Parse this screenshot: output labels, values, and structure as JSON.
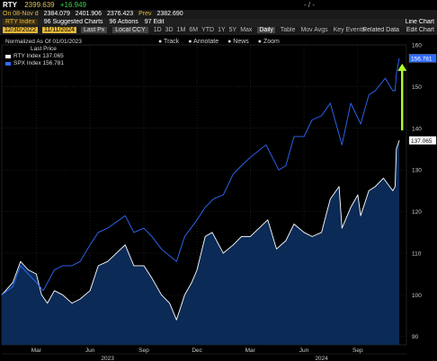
{
  "quote": {
    "symbol": "RTY",
    "last": "2399.639",
    "change": "+16.949",
    "flash": "- / -",
    "line2_prefix": "On 08-Nov d",
    "open": "2384.079",
    "high": "2401.906",
    "low": "2376.423",
    "prev_label": "Prev",
    "prev": "2382.690"
  },
  "toolbar": {
    "security": "RTY Index",
    "suggested": "96 Suggested Charts",
    "actions": "96 Actions",
    "edit": "97 Edit",
    "chart_type": "Line Chart"
  },
  "range_bar": {
    "start": "12/30/2022",
    "end": "11/11/2024",
    "last_price": "Last Px",
    "local_ccy": "Local CCY",
    "periods": [
      "1D",
      "3D",
      "1M",
      "6M",
      "YTD",
      "1Y",
      "5Y",
      "Max"
    ],
    "frequency": "Daily",
    "table": "Table",
    "mov_avgs": "Mov Avgs",
    "key_events": "Key Events",
    "related_data": "Related Data",
    "edit_chart": "Edit Chart"
  },
  "chart_tools": [
    "Track",
    "Annotate",
    "News",
    "Zoom"
  ],
  "accent_colors": {
    "rty": "#ffffff",
    "spx": "#2f6bff",
    "arrow": "#b0ff2a",
    "header": "#e4b73a"
  },
  "chart_data": {
    "type": "line",
    "title": "Normalized As Of 01/01/2023",
    "legend_header": "Last Price",
    "legend_position": "top-left",
    "grid": true,
    "ylim": [
      88,
      160
    ],
    "y_ticks": [
      90,
      100,
      110,
      120,
      130,
      140,
      150,
      160
    ],
    "x_range": [
      "2023-01-01",
      "2024-11-11"
    ],
    "x_tick_months": [
      {
        "label": "Mar",
        "date": "2023-03-01"
      },
      {
        "label": "Jun",
        "date": "2023-06-01"
      },
      {
        "label": "Sep",
        "date": "2023-09-01"
      },
      {
        "label": "Dec",
        "date": "2023-12-01"
      },
      {
        "label": "Mar",
        "date": "2024-03-01"
      },
      {
        "label": "Jun",
        "date": "2024-06-01"
      },
      {
        "label": "Sep",
        "date": "2024-09-01"
      }
    ],
    "x_year_labels": [
      {
        "label": "2023",
        "date": "2023-07-01"
      },
      {
        "label": "2024",
        "date": "2024-07-01"
      }
    ],
    "series": [
      {
        "name": "RTY Index",
        "last_label": "137.065",
        "color": "#ffffff",
        "fill": "#0b2a55",
        "points": [
          [
            "2023-01-01",
            100
          ],
          [
            "2023-01-20",
            103
          ],
          [
            "2023-02-02",
            108
          ],
          [
            "2023-02-15",
            106
          ],
          [
            "2023-03-01",
            105
          ],
          [
            "2023-03-10",
            100
          ],
          [
            "2023-03-20",
            98
          ],
          [
            "2023-04-01",
            101
          ],
          [
            "2023-04-15",
            100
          ],
          [
            "2023-05-01",
            98
          ],
          [
            "2023-05-15",
            99
          ],
          [
            "2023-06-01",
            101
          ],
          [
            "2023-06-15",
            107
          ],
          [
            "2023-07-01",
            108
          ],
          [
            "2023-07-31",
            112
          ],
          [
            "2023-08-15",
            107
          ],
          [
            "2023-09-01",
            107
          ],
          [
            "2023-09-15",
            104
          ],
          [
            "2023-10-01",
            100
          ],
          [
            "2023-10-15",
            98
          ],
          [
            "2023-10-27",
            94
          ],
          [
            "2023-11-10",
            100
          ],
          [
            "2023-11-22",
            103
          ],
          [
            "2023-12-01",
            106
          ],
          [
            "2023-12-15",
            114
          ],
          [
            "2023-12-27",
            115
          ],
          [
            "2024-01-15",
            110
          ],
          [
            "2024-02-01",
            112
          ],
          [
            "2024-02-15",
            114
          ],
          [
            "2024-03-01",
            114
          ],
          [
            "2024-03-31",
            118
          ],
          [
            "2024-04-15",
            111
          ],
          [
            "2024-05-01",
            113
          ],
          [
            "2024-05-15",
            117
          ],
          [
            "2024-06-01",
            115
          ],
          [
            "2024-06-15",
            114
          ],
          [
            "2024-07-01",
            115
          ],
          [
            "2024-07-16",
            123
          ],
          [
            "2024-07-31",
            126
          ],
          [
            "2024-08-05",
            116
          ],
          [
            "2024-08-20",
            121
          ],
          [
            "2024-09-01",
            124
          ],
          [
            "2024-09-06",
            119
          ],
          [
            "2024-09-20",
            125
          ],
          [
            "2024-10-01",
            126
          ],
          [
            "2024-10-15",
            128
          ],
          [
            "2024-10-31",
            125
          ],
          [
            "2024-11-04",
            126
          ],
          [
            "2024-11-06",
            135
          ],
          [
            "2024-11-11",
            137.065
          ]
        ]
      },
      {
        "name": "SPX Index",
        "last_label": "156.781",
        "color": "#2f6bff",
        "points": [
          [
            "2023-01-01",
            100
          ],
          [
            "2023-01-20",
            102
          ],
          [
            "2023-02-02",
            107
          ],
          [
            "2023-02-15",
            105
          ],
          [
            "2023-03-01",
            103
          ],
          [
            "2023-03-13",
            101
          ],
          [
            "2023-04-01",
            106
          ],
          [
            "2023-04-15",
            107
          ],
          [
            "2023-05-01",
            107
          ],
          [
            "2023-05-15",
            108
          ],
          [
            "2023-06-01",
            112
          ],
          [
            "2023-06-15",
            115
          ],
          [
            "2023-07-01",
            116
          ],
          [
            "2023-07-31",
            119
          ],
          [
            "2023-08-15",
            115
          ],
          [
            "2023-09-01",
            116
          ],
          [
            "2023-09-15",
            114
          ],
          [
            "2023-10-01",
            111
          ],
          [
            "2023-10-27",
            108
          ],
          [
            "2023-11-10",
            114
          ],
          [
            "2023-12-01",
            118
          ],
          [
            "2023-12-15",
            121
          ],
          [
            "2023-12-29",
            123
          ],
          [
            "2024-01-15",
            124
          ],
          [
            "2024-02-01",
            129
          ],
          [
            "2024-02-15",
            131
          ],
          [
            "2024-03-01",
            133
          ],
          [
            "2024-03-28",
            136
          ],
          [
            "2024-04-19",
            130
          ],
          [
            "2024-05-01",
            131
          ],
          [
            "2024-05-15",
            138
          ],
          [
            "2024-06-01",
            138
          ],
          [
            "2024-06-15",
            142
          ],
          [
            "2024-07-01",
            143
          ],
          [
            "2024-07-16",
            146
          ],
          [
            "2024-08-05",
            136
          ],
          [
            "2024-08-20",
            146
          ],
          [
            "2024-09-06",
            141
          ],
          [
            "2024-09-20",
            148
          ],
          [
            "2024-10-01",
            149
          ],
          [
            "2024-10-18",
            152
          ],
          [
            "2024-10-31",
            149
          ],
          [
            "2024-11-04",
            149
          ],
          [
            "2024-11-06",
            153
          ],
          [
            "2024-11-11",
            156.781
          ]
        ]
      }
    ],
    "annotation": {
      "type": "arrow",
      "color": "#b0ff2a",
      "date": "2024-11-16",
      "from": 139.5,
      "to": 155.5
    }
  }
}
